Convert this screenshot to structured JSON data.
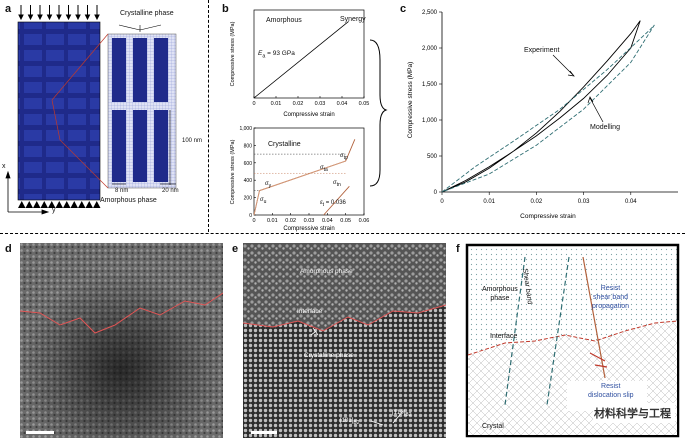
{
  "labels": {
    "a": "a",
    "b": "b",
    "c": "c",
    "d": "d",
    "e": "e",
    "f": "f"
  },
  "panel_a": {
    "crystalline_phase": "Crystalline phase",
    "amorphous_phase": "Amorphous phase",
    "dim_100": "100 nm",
    "dim_8": "8 nm",
    "dim_20": "20 nm",
    "axis_x": "x",
    "axis_y": "y"
  },
  "panel_b": {
    "top_title": "Amorphous",
    "top_annot": "E",
    "top_annot_sub": "a",
    "top_annot_val": " = 93 GPa",
    "bottom_title": "Crystalline",
    "synergy": "Synergy",
    "xlabel": "Compressive strain",
    "ylabel": "Compressive stress (MPa)",
    "eps_label": "ε",
    "eps_sub": "t",
    "eps_val": " = 0.036",
    "sigma_labels": [
      "σ",
      "σ",
      "σ",
      "σ",
      "σ"
    ],
    "sigma_subs": [
      "y",
      "u",
      "tp",
      "tn",
      "ta"
    ]
  },
  "panel_c": {
    "experiment": "Experiment",
    "modelling": "Modelling"
  },
  "panel_e": {
    "amorphous_phase": "Amorphous phase",
    "interface": "Interface",
    "crystalline_phase": "Crystalline phase",
    "dir1": "[1̄01]",
    "dir1_sub": "B2",
    "dir2": "[1̄10]",
    "dir2_sub": "B2"
  },
  "panel_f": {
    "amorphous_phase_1": "Amorphous",
    "amorphous_phase_2": "phase",
    "shear_band": "Shear band",
    "resist_shear_1": "Resist",
    "resist_shear_2": "shear band",
    "resist_shear_3": "propagation",
    "interface": "Interface",
    "resist_disloc_1": "Resist",
    "resist_disloc_2": "dislocation slip",
    "crystal": "Crystal",
    "watermark": "材料科学与工程"
  },
  "colors": {
    "navy": "#1f2a8a",
    "grid_blue": "#3b4fbf",
    "red_line": "#c0392b",
    "brown": "#b2623d",
    "dashed_teal": "#2f6e73",
    "blue_text": "#2f4fa0"
  },
  "chart_data": [
    {
      "type": "line",
      "panel": "b-top",
      "title": "Amorphous",
      "xlabel": "Compressive strain",
      "ylabel": "Compressive stress (MPa)",
      "xlim": [
        0,
        0.05
      ],
      "x_ticks": [
        0,
        0.01,
        0.02,
        0.03,
        0.04,
        0.05
      ],
      "series": [
        {
          "x": [
            0,
            0.043
          ],
          "y": [
            0,
            4000
          ]
        }
      ],
      "annotation": "E_a = 93 GPa"
    },
    {
      "type": "line",
      "panel": "b-bottom",
      "title": "Crystalline",
      "xlabel": "Compressive strain",
      "ylabel": "Compressive stress (MPa)",
      "xlim": [
        0,
        0.06
      ],
      "ylim": [
        0,
        1000
      ],
      "x_ticks": [
        0,
        0.01,
        0.02,
        0.03,
        0.04,
        0.05,
        0.06
      ],
      "y_ticks": [
        0,
        200,
        400,
        600,
        800,
        1000
      ],
      "series": [
        {
          "x": [
            0,
            0.003,
            0.05,
            0.055
          ],
          "y": [
            0,
            280,
            620,
            870
          ]
        },
        {
          "x": [
            0,
            0.003,
            0.05
          ],
          "y": [
            0,
            280,
            620
          ]
        },
        {
          "x": [
            0.038,
            0.052
          ],
          "y": [
            0,
            330
          ]
        }
      ],
      "annotation": "ε_t = 0.036"
    },
    {
      "type": "line",
      "panel": "c",
      "xlabel": "Compressive strain",
      "ylabel": "Compressive stress (MPa)",
      "xlim": [
        0,
        0.05
      ],
      "ylim": [
        0,
        2500
      ],
      "x_ticks": [
        0,
        0.01,
        0.02,
        0.03,
        0.04
      ],
      "y_ticks": [
        0,
        500,
        1000,
        1500,
        2000,
        2500
      ],
      "series": [
        {
          "name": "Experiment",
          "style": "solid",
          "x": [
            0,
            0.005,
            0.01,
            0.015,
            0.02,
            0.025,
            0.03,
            0.035,
            0.04,
            0.042,
            0.04,
            0.035,
            0.03,
            0.025,
            0.02,
            0.015,
            0.01,
            0.005,
            0
          ],
          "y": [
            0,
            160,
            350,
            560,
            780,
            1030,
            1300,
            1620,
            2000,
            2380,
            2200,
            1820,
            1460,
            1120,
            820,
            560,
            330,
            140,
            0
          ]
        },
        {
          "name": "Modelling",
          "style": "dashed",
          "x": [
            0,
            0.007,
            0.015,
            0.025,
            0.035,
            0.044,
            0.045,
            0.04,
            0.03,
            0.02,
            0.01,
            0
          ],
          "y": [
            0,
            350,
            700,
            1150,
            1700,
            2250,
            2320,
            1800,
            1150,
            650,
            250,
            0
          ]
        }
      ]
    }
  ]
}
